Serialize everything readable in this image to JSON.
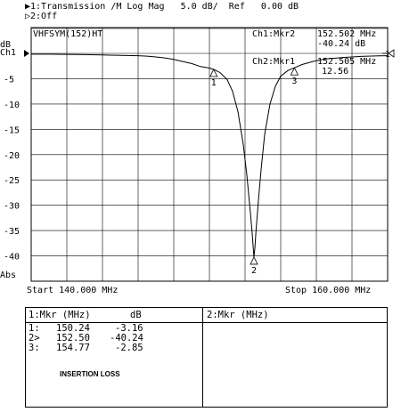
{
  "header": {
    "line1": "▶1:Transmission /M Log Mag   5.0 dB/  Ref   0.00 dB",
    "line2": "▷2:Off"
  },
  "chart_data": {
    "type": "line",
    "title": "VHFSYM(152)HT",
    "ylabel_unit": "dB",
    "channel_label": "Ch1",
    "x_start_label": "Start 140.000 MHz",
    "x_stop_label": "Stop 160.000 MHz",
    "abs_label": "Abs",
    "xlim": [
      140.0,
      160.0
    ],
    "ylim": [
      -45,
      0
    ],
    "y_ticks": [
      {
        "value": -5,
        "label": "-5"
      },
      {
        "value": -10,
        "label": "-10"
      },
      {
        "value": -15,
        "label": "-15"
      },
      {
        "value": -20,
        "label": "-20"
      },
      {
        "value": -25,
        "label": "-25"
      },
      {
        "value": -30,
        "label": "-30"
      },
      {
        "value": -35,
        "label": "-35"
      },
      {
        "value": -40,
        "label": "-40"
      }
    ],
    "x_divisions": 10,
    "y_divisions": 9,
    "grid": true,
    "series": [
      {
        "x": [
          140.0,
          141.0,
          142.0,
          143.0,
          144.0,
          145.0,
          146.0,
          146.5,
          147.0,
          147.5,
          148.0,
          148.5,
          149.0,
          149.5,
          150.0,
          150.24,
          150.6,
          151.0,
          151.3,
          151.6,
          151.9,
          152.1,
          152.3,
          152.4,
          152.45,
          152.5,
          152.55,
          152.6,
          152.75,
          152.9,
          153.1,
          153.4,
          153.7,
          154.0,
          154.4,
          154.77,
          155.2,
          155.8,
          156.5,
          157.5,
          158.5,
          159.5,
          160.0
        ],
        "y": [
          -0.15,
          -0.15,
          -0.2,
          -0.25,
          -0.3,
          -0.4,
          -0.45,
          -0.55,
          -0.7,
          -0.9,
          -1.2,
          -1.6,
          -2.0,
          -2.6,
          -2.9,
          -3.16,
          -3.8,
          -5.2,
          -7.5,
          -11.5,
          -18.0,
          -24.0,
          -31.5,
          -35.5,
          -38.0,
          -40.24,
          -38.5,
          -35.8,
          -29.0,
          -23.0,
          -16.0,
          -10.0,
          -6.5,
          -4.5,
          -3.4,
          -2.85,
          -2.2,
          -1.6,
          -1.1,
          -0.8,
          -0.6,
          -0.5,
          -0.45
        ]
      }
    ],
    "markers": [
      {
        "label": "1",
        "x": 150.24,
        "y": -3.16
      },
      {
        "label": "2",
        "x": 152.5,
        "y": -40.24
      },
      {
        "label": "3",
        "x": 154.77,
        "y": -2.85
      }
    ],
    "marker_readouts": [
      {
        "name": "Ch1:Mkr2",
        "freq": "152.502 MHz",
        "value": "-40.24 dB"
      },
      {
        "name": "Ch2:Mkr1",
        "freq": "152.505 MHz",
        "value": "12.56"
      }
    ],
    "ref_marker_label": "1"
  },
  "table": {
    "left_title": "1:Mkr (MHz)",
    "left_unit": "dB",
    "right_title": "2:Mkr (MHz)",
    "rows": [
      {
        "id": "1:",
        "freq": "150.24",
        "value": "-3.16"
      },
      {
        "id": "2>",
        "freq": "152.50",
        "value": "-40.24"
      },
      {
        "id": "3:",
        "freq": "154.77",
        "value": "-2.85"
      }
    ],
    "note": "INSERTION LOSS"
  }
}
